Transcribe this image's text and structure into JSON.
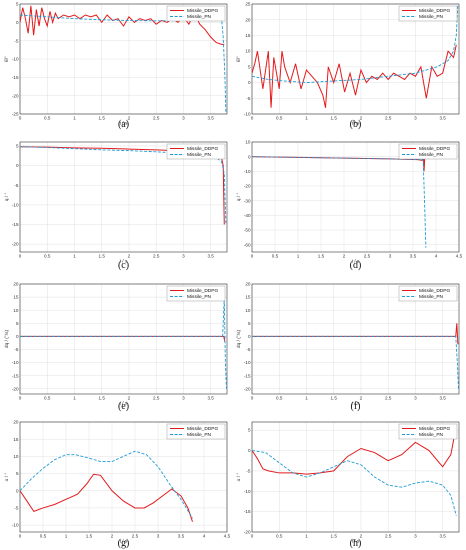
{
  "colors": {
    "ddpg": "#e31a1c",
    "pn": "#1f9bd6",
    "axis": "#333333",
    "grid": "#d9d9d9"
  },
  "chart_data": [
    {
      "id": "a",
      "caption": "(a)",
      "type": "line",
      "ylabel": "θ̇/°",
      "xlabel": "t / s",
      "xlim": [
        0,
        3.8
      ],
      "ylim": [
        -25,
        5
      ],
      "xticks": [
        0,
        0.5,
        1,
        1.5,
        2,
        2.5,
        3,
        3.5
      ],
      "yticks": [
        -25,
        -20,
        -15,
        -10,
        -5,
        0,
        5
      ],
      "xtick_labels": [
        "0",
        "0.5",
        "1",
        "1.5",
        "2",
        "2.5",
        "3",
        "3.5"
      ],
      "ytick_labels": [
        "-25",
        "-20",
        "-15",
        "-10",
        "-5",
        "0",
        "5"
      ],
      "legend": [
        "Missile_DDPG",
        "Missile_PN"
      ],
      "series": [
        {
          "name": "Missile_DDPG",
          "x": [
            0,
            0.05,
            0.1,
            0.15,
            0.2,
            0.25,
            0.3,
            0.35,
            0.4,
            0.45,
            0.5,
            0.55,
            0.6,
            0.65,
            0.7,
            0.8,
            0.9,
            1.0,
            1.1,
            1.2,
            1.3,
            1.4,
            1.5,
            1.6,
            1.7,
            1.8,
            1.9,
            2.0,
            2.1,
            2.2,
            2.3,
            2.4,
            2.5,
            2.6,
            2.7,
            2.8,
            2.9,
            3.0,
            3.1,
            3.2,
            3.3,
            3.4,
            3.5,
            3.6,
            3.7,
            3.75
          ],
          "y": [
            0,
            4,
            1,
            -3,
            4.5,
            -3.5,
            3.5,
            -1,
            4,
            1,
            -1,
            3,
            0,
            2.5,
            1,
            2,
            1.5,
            2,
            1,
            2,
            1.5,
            2,
            0,
            2,
            0.5,
            1,
            -1,
            1.5,
            0,
            1,
            0.5,
            1,
            -0.5,
            0.5,
            0,
            1,
            0,
            1.5,
            -0.5,
            2.5,
            -0.5,
            -2,
            -4,
            -5.5,
            -6,
            -6
          ]
        },
        {
          "name": "Missile_PN",
          "x": [
            0,
            0.5,
            1,
            1.5,
            2,
            2.5,
            3,
            3.3,
            3.5,
            3.6,
            3.65,
            3.7,
            3.73,
            3.76,
            3.78
          ],
          "y": [
            2,
            1.5,
            1,
            0.7,
            0.5,
            0.4,
            0.5,
            0.8,
            1.5,
            2,
            2,
            1,
            -4,
            -14,
            -25
          ]
        }
      ]
    },
    {
      "id": "b",
      "caption": "(b)",
      "type": "line",
      "ylabel": "θ̇/°",
      "xlabel": "t / s",
      "xlim": [
        0,
        3.8
      ],
      "ylim": [
        -10,
        25
      ],
      "xticks": [
        0,
        0.5,
        1,
        1.5,
        2,
        2.5,
        3,
        3.5
      ],
      "yticks": [
        -10,
        -5,
        0,
        5,
        10,
        15,
        20,
        25
      ],
      "xtick_labels": [
        "0",
        "0.5",
        "1",
        "1.5",
        "2",
        "2.5",
        "3",
        "3.5"
      ],
      "ytick_labels": [
        "-10",
        "-5",
        "0",
        "5",
        "10",
        "15",
        "20",
        "25"
      ],
      "legend": [
        "Missile_DDPG",
        "Missile_PN"
      ],
      "series": [
        {
          "name": "Missile_DDPG",
          "x": [
            0,
            0.05,
            0.1,
            0.2,
            0.3,
            0.35,
            0.4,
            0.5,
            0.55,
            0.6,
            0.7,
            0.8,
            0.9,
            1.0,
            1.1,
            1.2,
            1.3,
            1.35,
            1.4,
            1.5,
            1.6,
            1.7,
            1.8,
            1.9,
            2.0,
            2.1,
            2.2,
            2.3,
            2.4,
            2.5,
            2.6,
            2.7,
            2.8,
            2.9,
            3.0,
            3.1,
            3.2,
            3.3,
            3.4,
            3.5,
            3.6,
            3.7,
            3.75
          ],
          "y": [
            3,
            6,
            10,
            -2,
            10,
            -8,
            8,
            -2,
            10,
            5,
            0,
            6,
            -2,
            4,
            2,
            0,
            -4,
            -8,
            5,
            0,
            6,
            -3,
            3,
            -4,
            4,
            0,
            2,
            1,
            3,
            1,
            3,
            2,
            1,
            3,
            2,
            5,
            -5,
            5,
            2,
            3,
            10,
            8,
            12
          ]
        },
        {
          "name": "Missile_PN",
          "x": [
            0,
            0.3,
            0.6,
            1,
            1.5,
            2,
            2.5,
            3,
            3.4,
            3.6,
            3.7,
            3.75,
            3.78
          ],
          "y": [
            2,
            1,
            0.5,
            0,
            0.5,
            1,
            2,
            3,
            5,
            7,
            10,
            15,
            25
          ]
        }
      ]
    },
    {
      "id": "c",
      "caption": "(c)",
      "type": "line",
      "ylabel": "q / °",
      "xlabel": "t / s",
      "xlim": [
        0,
        3.8
      ],
      "ylim": [
        -22,
        6
      ],
      "xticks": [
        0,
        0.5,
        1,
        1.5,
        2,
        2.5,
        3,
        3.5
      ],
      "yticks": [
        -20,
        -15,
        -10,
        -5,
        0,
        5
      ],
      "xtick_labels": [
        "0",
        "0.5",
        "1",
        "1.5",
        "2",
        "2.5",
        "3",
        "3.5"
      ],
      "ytick_labels": [
        "-20",
        "-15",
        "-10",
        "-5",
        "0",
        "5"
      ],
      "legend": [
        "Missile_DDPG",
        "Missile_PN"
      ],
      "series": [
        {
          "name": "Missile_DDPG",
          "x": [
            0,
            0.5,
            1,
            1.5,
            2,
            2.5,
            3,
            3.3,
            3.5,
            3.6,
            3.7,
            3.73,
            3.75
          ],
          "y": [
            4.8,
            4.7,
            4.5,
            4.4,
            4.2,
            4.0,
            3.7,
            3.5,
            3.2,
            2.8,
            2,
            0,
            -15
          ]
        },
        {
          "name": "Missile_PN",
          "x": [
            0,
            0.5,
            1,
            1.5,
            2,
            2.5,
            3,
            3.3,
            3.5,
            3.6,
            3.7,
            3.75,
            3.78
          ],
          "y": [
            4.8,
            4.6,
            4.3,
            4.0,
            3.8,
            3.5,
            3.1,
            2.7,
            2.3,
            2.0,
            1,
            -2,
            -15
          ]
        }
      ]
    },
    {
      "id": "d",
      "caption": "(d)",
      "type": "line",
      "ylabel": "q / °",
      "xlabel": "t / s",
      "xlim": [
        0,
        4.5
      ],
      "ylim": [
        -65,
        10
      ],
      "xticks": [
        0,
        0.5,
        1,
        1.5,
        2,
        2.5,
        3,
        3.5,
        4,
        4.5
      ],
      "yticks": [
        -60,
        -50,
        -40,
        -30,
        -20,
        -10,
        0,
        10
      ],
      "xtick_labels": [
        "0",
        "0.5",
        "1",
        "1.5",
        "2",
        "2.5",
        "3",
        "3.5",
        "4",
        "4.5"
      ],
      "ytick_labels": [
        "-60",
        "-50",
        "-40",
        "-30",
        "-20",
        "-10",
        "0",
        "10"
      ],
      "legend": [
        "Missile_DDPG",
        "Missile_PN"
      ],
      "series": [
        {
          "name": "Missile_DDPG",
          "x": [
            0,
            1,
            2,
            3,
            3.6,
            3.7,
            3.72,
            3.74,
            3.76
          ],
          "y": [
            0,
            -0.5,
            -1,
            -1.5,
            -2,
            -2.5,
            5,
            -10,
            2
          ]
        },
        {
          "name": "Missile_PN",
          "x": [
            0,
            1,
            2,
            3,
            3.6,
            3.72,
            3.74,
            3.76,
            3.78
          ],
          "y": [
            0,
            -0.5,
            -1,
            -1.5,
            -2,
            -2,
            -20,
            -40,
            -62
          ]
        }
      ]
    },
    {
      "id": "e",
      "caption": "(e)",
      "type": "line",
      "ylabel": "dq / (°/s)",
      "xlabel": "t / s",
      "xlim": [
        0,
        3.8
      ],
      "ylim": [
        -22,
        20
      ],
      "xticks": [
        0,
        0.5,
        1,
        1.5,
        2,
        2.5,
        3,
        3.5
      ],
      "yticks": [
        -20,
        -15,
        -10,
        -5,
        0,
        5,
        10,
        15,
        20
      ],
      "xtick_labels": [
        "0",
        "0.5",
        "1",
        "1.5",
        "2",
        "2.5",
        "3",
        "3.5"
      ],
      "ytick_labels": [
        "-20",
        "-15",
        "-10",
        "-5",
        "0",
        "5",
        "10",
        "15",
        "20"
      ],
      "legend": [
        "Missile_DDPG",
        "Missile_PN"
      ],
      "series": [
        {
          "name": "Missile_DDPG",
          "x": [
            0,
            1,
            2,
            3,
            3.7,
            3.74,
            3.76
          ],
          "y": [
            0,
            0,
            0,
            0,
            0,
            0,
            -2
          ]
        },
        {
          "name": "Missile_PN",
          "x": [
            0,
            1,
            2,
            3,
            3.72,
            3.75,
            3.77,
            3.79
          ],
          "y": [
            0,
            0,
            0,
            0,
            0,
            15,
            -10,
            -20
          ]
        }
      ]
    },
    {
      "id": "f",
      "caption": "(f)",
      "type": "line",
      "ylabel": "dq / (°/s)",
      "xlabel": "t / s",
      "xlim": [
        0,
        3.8
      ],
      "ylim": [
        -22,
        20
      ],
      "xticks": [
        0,
        0.5,
        1,
        1.5,
        2,
        2.5,
        3,
        3.5
      ],
      "yticks": [
        -20,
        -15,
        -10,
        -5,
        0,
        5,
        10,
        15,
        20
      ],
      "xtick_labels": [
        "0",
        "0.5",
        "1",
        "1.5",
        "2",
        "2.5",
        "3",
        "3.5"
      ],
      "ytick_labels": [
        "-20",
        "-15",
        "-10",
        "-5",
        "0",
        "5",
        "10",
        "15",
        "20"
      ],
      "legend": [
        "Missile_DDPG",
        "Missile_PN"
      ],
      "series": [
        {
          "name": "Missile_DDPG",
          "x": [
            0,
            1,
            2,
            3,
            3.74,
            3.76,
            3.78
          ],
          "y": [
            0,
            0,
            0,
            0,
            0,
            5,
            -3
          ]
        },
        {
          "name": "Missile_PN",
          "x": [
            0,
            1,
            2,
            3,
            3.74,
            3.77,
            3.79
          ],
          "y": [
            0,
            0,
            0,
            0,
            0,
            -10,
            -20
          ]
        }
      ]
    },
    {
      "id": "g",
      "caption": "(g)",
      "type": "line",
      "ylabel": "α / °",
      "xlabel": "t / s",
      "xlim": [
        0,
        4.5
      ],
      "ylim": [
        -12,
        20
      ],
      "xticks": [
        0,
        0.5,
        1,
        1.5,
        2,
        2.5,
        3,
        3.5,
        4,
        4.5
      ],
      "yticks": [
        -10,
        -5,
        0,
        5,
        10,
        15,
        20
      ],
      "xtick_labels": [
        "0",
        "0.5",
        "1",
        "1.5",
        "2",
        "2.5",
        "3",
        "3.5",
        "4",
        "4.5"
      ],
      "ytick_labels": [
        "-10",
        "-5",
        "0",
        "5",
        "10",
        "15",
        "20"
      ],
      "legend": [
        "Missile_DDPG",
        "Missile_PN"
      ],
      "series": [
        {
          "name": "Missile_DDPG",
          "x": [
            0,
            0.15,
            0.3,
            0.5,
            0.75,
            1.0,
            1.25,
            1.45,
            1.6,
            1.75,
            2.0,
            2.25,
            2.5,
            2.7,
            2.9,
            3.1,
            3.3,
            3.5,
            3.65,
            3.75
          ],
          "y": [
            0,
            -3,
            -6,
            -5,
            -4,
            -2.5,
            -1,
            2,
            4.8,
            4.5,
            0,
            -3,
            -5,
            -5,
            -3.5,
            -1.5,
            0.5,
            -1.5,
            -5,
            -9
          ]
        },
        {
          "name": "Missile_PN",
          "x": [
            0,
            0.25,
            0.5,
            0.75,
            1.0,
            1.2,
            1.5,
            1.75,
            2.0,
            2.25,
            2.5,
            2.75,
            3.0,
            3.25,
            3.5,
            3.75
          ],
          "y": [
            0,
            3.5,
            6.5,
            9,
            10.5,
            10.5,
            9.5,
            8.5,
            8.5,
            10,
            11.5,
            10.5,
            7,
            2,
            -2.5,
            -8
          ]
        }
      ]
    },
    {
      "id": "h",
      "caption": "(h)",
      "type": "line",
      "ylabel": "α / °",
      "xlabel": "t / s",
      "xlim": [
        0,
        3.8
      ],
      "ylim": [
        -20,
        7
      ],
      "xticks": [
        0,
        0.5,
        1,
        1.5,
        2,
        2.5,
        3,
        3.5
      ],
      "yticks": [
        -20,
        -15,
        -10,
        -5,
        0,
        5
      ],
      "xtick_labels": [
        "0",
        "0.5",
        "1",
        "1.5",
        "2",
        "2.5",
        "3",
        "3.5"
      ],
      "ytick_labels": [
        "-20",
        "-15",
        "-10",
        "-5",
        "0",
        "5"
      ],
      "legend": [
        "Missile_DDPG",
        "Missile_PN"
      ],
      "series": [
        {
          "name": "Missile_DDPG",
          "x": [
            0,
            0.1,
            0.2,
            0.3,
            0.5,
            0.75,
            1.0,
            1.25,
            1.5,
            1.75,
            2.0,
            2.25,
            2.5,
            2.75,
            3.0,
            3.25,
            3.5,
            3.65,
            3.75
          ],
          "y": [
            0,
            -2,
            -4.5,
            -5,
            -5.5,
            -5.5,
            -5.8,
            -5.5,
            -5,
            -1.5,
            0.5,
            -0.5,
            -2.5,
            -1,
            2,
            0,
            -4,
            -1,
            6
          ]
        },
        {
          "name": "Missile_PN",
          "x": [
            0,
            0.25,
            0.5,
            0.75,
            1.0,
            1.25,
            1.5,
            1.75,
            2.0,
            2.25,
            2.5,
            2.75,
            3.0,
            3.25,
            3.5,
            3.65,
            3.75
          ],
          "y": [
            0,
            -0.5,
            -3,
            -5.5,
            -6.5,
            -5.5,
            -4,
            -2.5,
            -3.5,
            -6.5,
            -8.5,
            -9,
            -8,
            -7.5,
            -8.5,
            -11,
            -16
          ]
        }
      ]
    }
  ]
}
